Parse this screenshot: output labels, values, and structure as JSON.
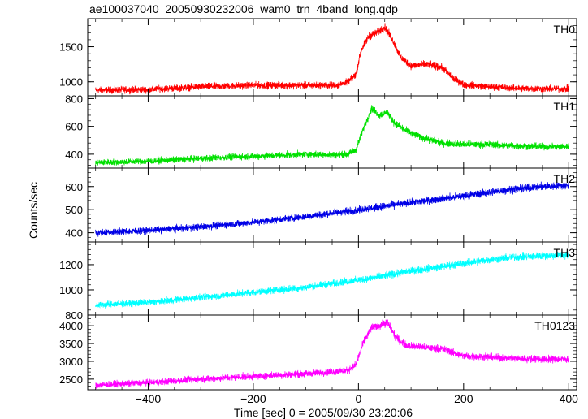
{
  "chart_data": {
    "type": "line",
    "title": "ae100037040_20050930232006_wam0_trn_4band_long.qdp",
    "xlabel": "Time [sec] 0 = 2005/09/30 23:20:06",
    "ylabel": "Counts/sec",
    "xlim": [
      -515,
      415
    ],
    "xticks": [
      -400,
      -200,
      0,
      200,
      400
    ],
    "x_tick_labels": [
      "−400",
      "−200",
      "0",
      "200",
      "400"
    ],
    "grid": false,
    "panels": [
      {
        "name": "TH0",
        "color": "#ff0000",
        "ylim": [
          800,
          1900
        ],
        "yticks": [
          1000,
          1500
        ],
        "y_tick_labels": [
          "1000",
          "1500"
        ],
        "x": [
          -500,
          -400,
          -300,
          -200,
          -100,
          -40,
          -20,
          -5,
          5,
          20,
          35,
          50,
          65,
          80,
          100,
          130,
          160,
          180,
          200,
          250,
          300,
          350,
          400
        ],
        "y": [
          880,
          890,
          930,
          950,
          950,
          950,
          1000,
          1100,
          1450,
          1650,
          1700,
          1780,
          1600,
          1350,
          1230,
          1250,
          1200,
          1050,
          960,
          930,
          910,
          900,
          900
        ]
      },
      {
        "name": "TH1",
        "color": "#00e000",
        "ylim": [
          300,
          820
        ],
        "yticks": [
          400,
          600,
          800
        ],
        "y_tick_labels": [
          "400",
          "600",
          "800"
        ],
        "x": [
          -500,
          -400,
          -300,
          -200,
          -100,
          -40,
          -20,
          -5,
          10,
          25,
          40,
          55,
          70,
          90,
          120,
          160,
          200,
          250,
          300,
          350,
          400
        ],
        "y": [
          340,
          350,
          370,
          385,
          400,
          395,
          400,
          430,
          590,
          730,
          680,
          700,
          620,
          570,
          520,
          480,
          470,
          470,
          460,
          455,
          455
        ]
      },
      {
        "name": "TH2",
        "color": "#0000e6",
        "ylim": [
          360,
          680
        ],
        "yticks": [
          400,
          500,
          600
        ],
        "y_tick_labels": [
          "400",
          "500",
          "600"
        ],
        "x": [
          -500,
          -400,
          -300,
          -200,
          -100,
          0,
          50,
          100,
          150,
          200,
          250,
          300,
          350,
          400
        ],
        "y": [
          400,
          410,
          425,
          445,
          470,
          500,
          515,
          530,
          545,
          560,
          575,
          590,
          600,
          605
        ]
      },
      {
        "name": "TH3",
        "color": "#00ffff",
        "ylim": [
          800,
          1380
        ],
        "yticks": [
          800,
          1000,
          1200
        ],
        "y_tick_labels": [
          "800",
          "1000",
          "1200"
        ],
        "x": [
          -500,
          -400,
          -300,
          -200,
          -100,
          0,
          50,
          100,
          150,
          200,
          250,
          300,
          350,
          400
        ],
        "y": [
          880,
          900,
          940,
          980,
          1020,
          1080,
          1110,
          1150,
          1180,
          1210,
          1240,
          1260,
          1270,
          1275
        ]
      },
      {
        "name": "TH0123",
        "color": "#ff00ff",
        "ylim": [
          2200,
          4300
        ],
        "yticks": [
          2500,
          3000,
          3500,
          4000
        ],
        "y_tick_labels": [
          "2500",
          "3000",
          "3500",
          "4000"
        ],
        "x": [
          -500,
          -400,
          -300,
          -200,
          -100,
          -40,
          -20,
          -5,
          10,
          25,
          40,
          55,
          70,
          90,
          120,
          160,
          200,
          250,
          300,
          350,
          400
        ],
        "y": [
          2330,
          2400,
          2500,
          2580,
          2650,
          2720,
          2750,
          2900,
          3550,
          3950,
          4000,
          4100,
          3700,
          3450,
          3400,
          3350,
          3150,
          3120,
          3080,
          3060,
          3060
        ]
      }
    ]
  }
}
